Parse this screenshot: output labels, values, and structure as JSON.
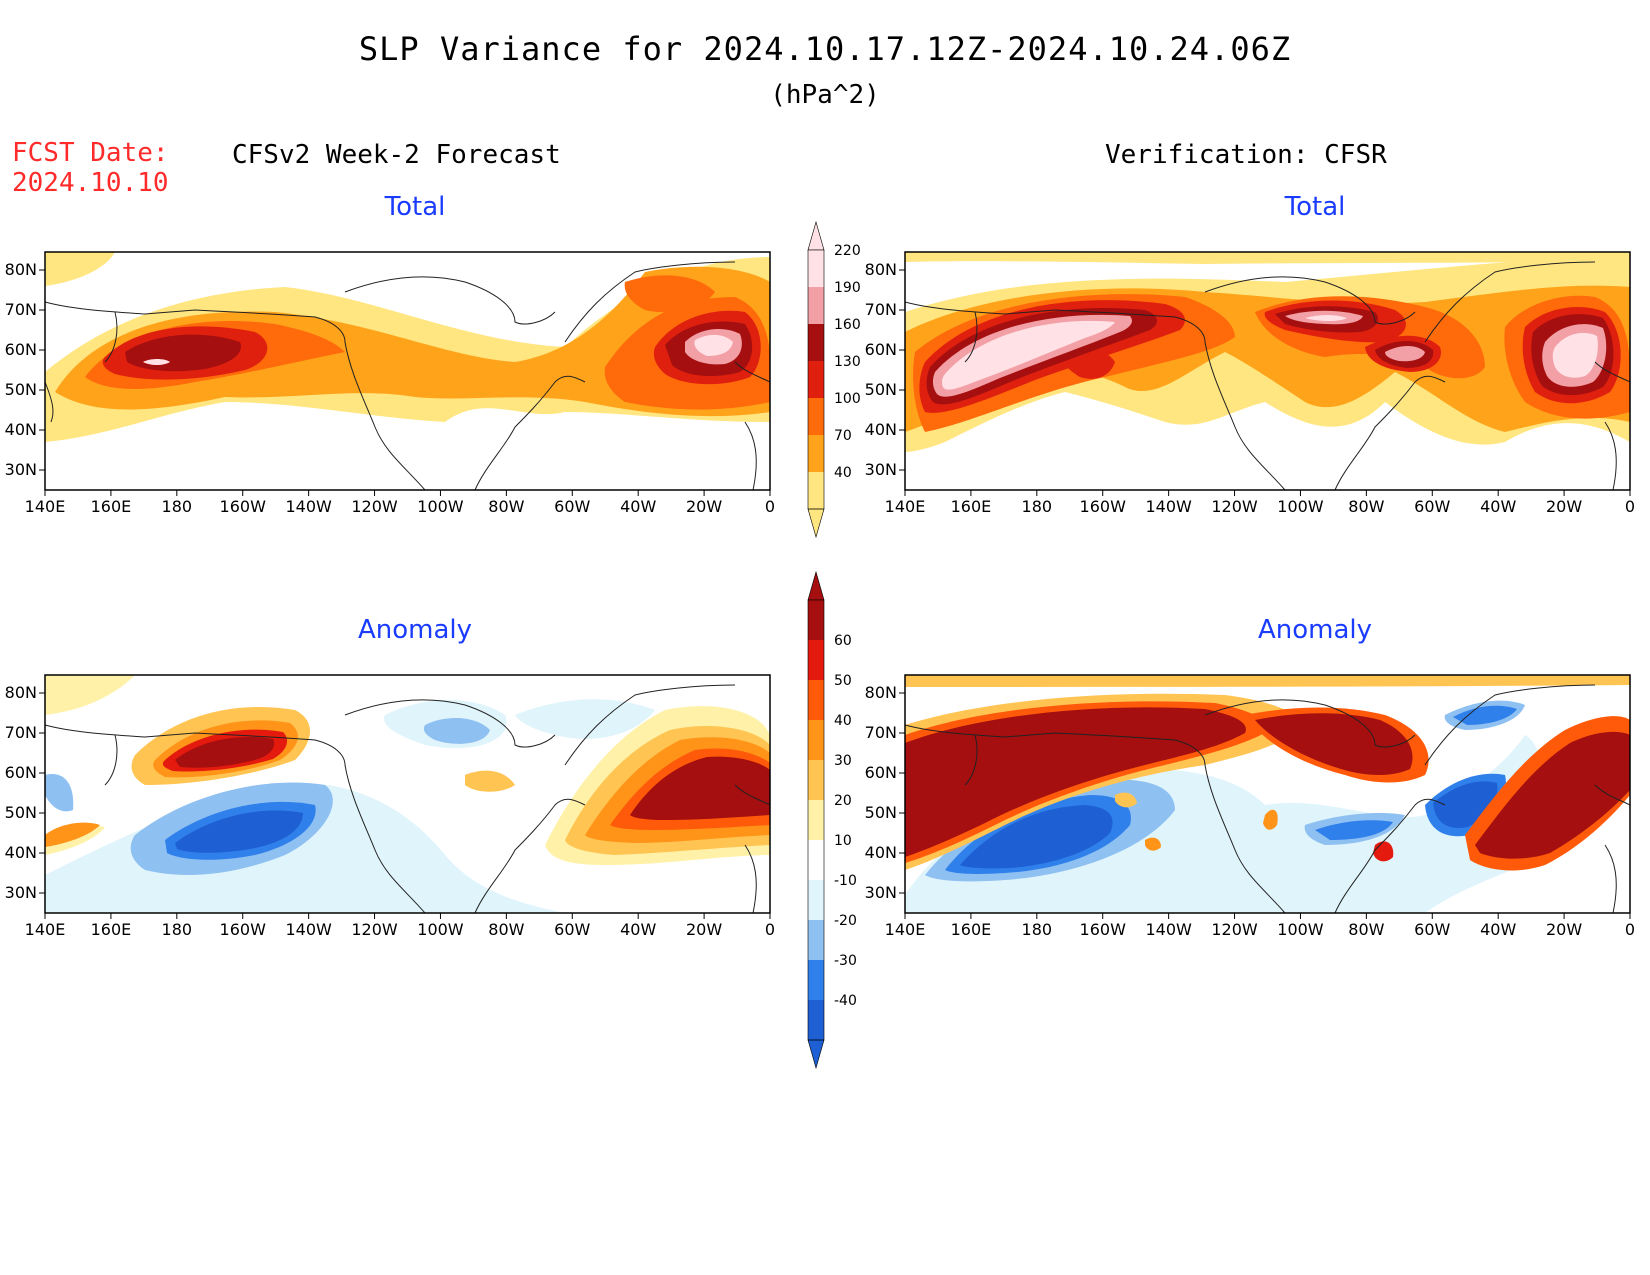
{
  "header": {
    "title": "SLP Variance for 2024.10.17.12Z-2024.10.24.06Z",
    "units": "(hPa^2)",
    "fcst_date_label": "FCST Date:",
    "fcst_date_value": "2024.10.10"
  },
  "columns": {
    "left": "CFSv2 Week-2 Forecast",
    "right": "Verification: CFSR"
  },
  "panels": {
    "top_left_label": "Total",
    "top_right_label": "Total",
    "bottom_left_label": "Anomaly",
    "bottom_right_label": "Anomaly"
  },
  "axes": {
    "lon_ticks": [
      "140E",
      "160E",
      "180",
      "160W",
      "140W",
      "120W",
      "100W",
      "80W",
      "60W",
      "40W",
      "20W",
      "0"
    ],
    "lat_ticks": [
      "30N",
      "40N",
      "50N",
      "60N",
      "70N",
      "80N"
    ]
  },
  "colorbars": {
    "total": {
      "levels": [
        "40",
        "70",
        "100",
        "130",
        "160",
        "190",
        "220"
      ],
      "colors": [
        "#ffe680",
        "#ffa31a",
        "#ff6a0a",
        "#e0200e",
        "#a50f0f",
        "#f2a0a6",
        "#ffe1e6"
      ]
    },
    "anomaly": {
      "levels": [
        "-40",
        "-30",
        "-20",
        "-10",
        "10",
        "20",
        "30",
        "40",
        "50",
        "60"
      ],
      "colors": [
        "#1e5fd4",
        "#2f80ea",
        "#8fc0f2",
        "#dff4fb",
        "#ffffff",
        "#fff2a8",
        "#ffc452",
        "#ff9418",
        "#ff5a0a",
        "#e41a0e",
        "#a50f0f"
      ]
    }
  }
}
